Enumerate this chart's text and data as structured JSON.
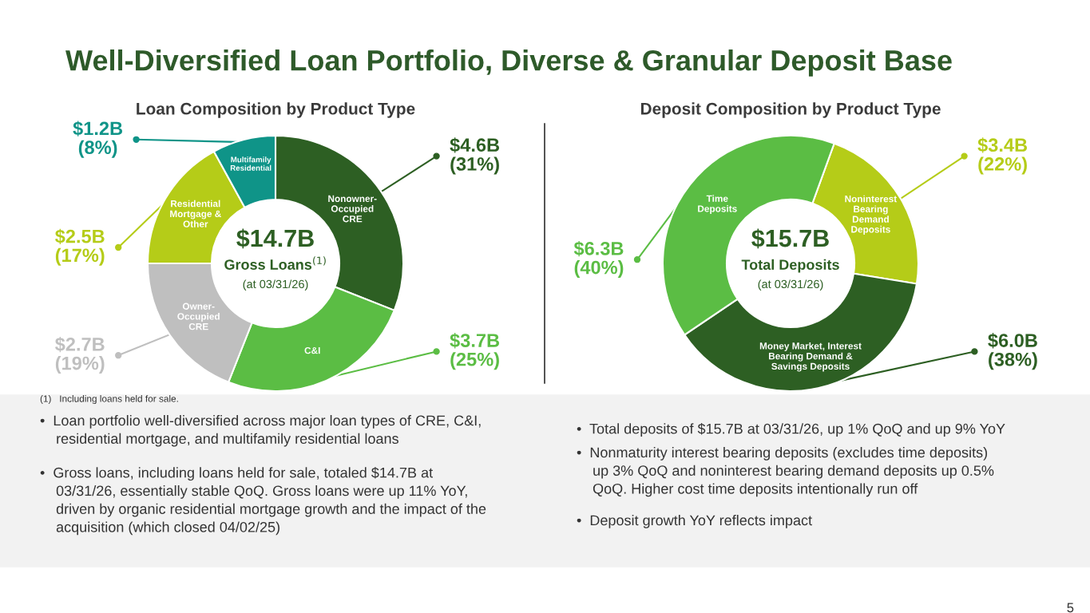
{
  "chart_data": [
    {
      "type": "donut",
      "title": "Loan Composition by Product Type",
      "categories": [
        "Nonowner-\nOccupied\nCRE",
        "C&I",
        "Owner-\nOccupied\nCRE",
        "Residential\nMortgage &\nOther",
        "Multifamily\nResidential"
      ],
      "values": [
        31,
        25,
        19,
        17,
        8
      ],
      "colors": [
        "#2d5f23",
        "#5bbd44",
        "#bfbfbf",
        "#b5cc18",
        "#0f9488"
      ],
      "value_labels": [
        "$4.6B\n(31%)",
        "$3.7B\n(25%)",
        "$2.7B\n(19%)",
        "$2.5B\n(17%)",
        "$1.2B\n(8%)"
      ],
      "annotations": [
        "Well-Diversified Loan Portfolio, Diverse & Granular Deposit Base",
        "$14.7B",
        "Gross Loans$^{(1)}$",
        "(at 03/31/26)",
        "(1)   Including loans held for sale.",
        "•  Loan portfolio well-diversified across major loan types of CRE, C&I,\n    residential mortgage, and multifamily residential loans",
        "•  Gross loans, including loans held for sale, totaled $14.7B at\n    03/31/26, essentially stable QoQ. Gross loans were up 11% YoY,\n    driven by organic residential mortgage growth and the impact of the\n    acquisition (which closed 04/02/25)",
        "5"
      ]
    },
    {
      "type": "donut",
      "title": "Deposit Composition by Product Type",
      "categories": [
        "Noninterest\nBearing\nDemand\nDeposits",
        "Money Market, Interest\nBearing Demand &\nSavings Deposits",
        "Time\nDeposits"
      ],
      "values": [
        22,
        38,
        40
      ],
      "colors": [
        "#b5cc18",
        "#2d5f23",
        "#5bbd44"
      ],
      "value_labels": [
        "$3.4B\n(22%)",
        "$6.0B\n(38%)",
        "$6.3B\n(40%)"
      ],
      "annotations": [
        "$15.7B",
        "Total Deposits",
        "(at 03/31/26)",
        "•  Total deposits of $15.7B at 03/31/26, up 1% QoQ and up 9% YoY",
        "•  Nonmaturity interest bearing deposits (excludes time deposits)\n    up 3% QoQ and noninterest bearing demand deposits up 0.5%\n    QoQ. Higher cost time deposits intentionally run off",
        "•  Deposit growth YoY reflects impact"
      ]
    }
  ]
}
